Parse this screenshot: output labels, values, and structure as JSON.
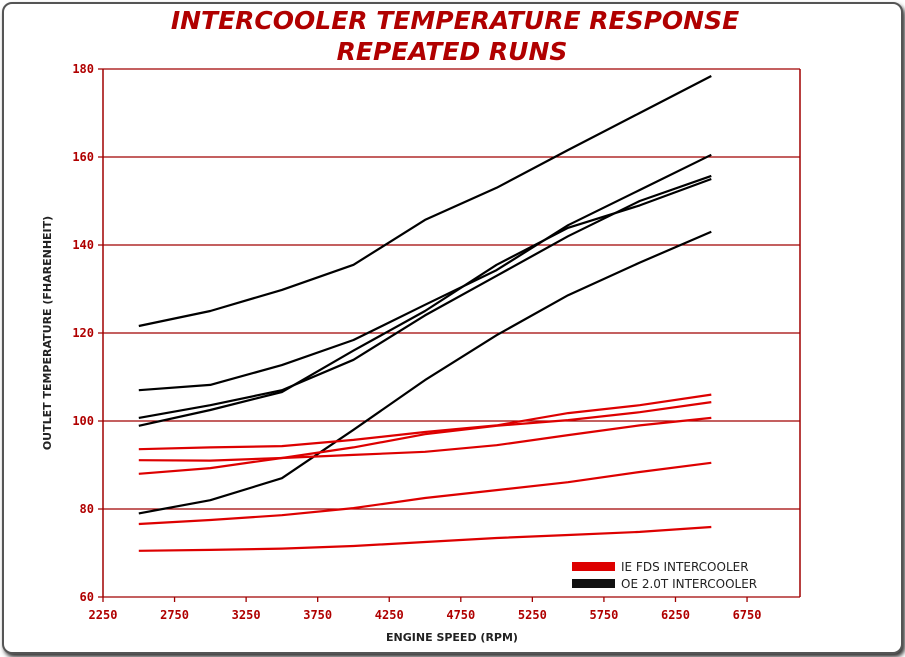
{
  "chart_data": {
    "type": "line",
    "title": [
      "INTERCOOLER TEMPERATURE RESPONSE",
      "REPEATED RUNS"
    ],
    "xlabel": "ENGINE SPEED (RPM)",
    "ylabel": "OUTLET TEMPERATURE (FHARENHEIT)",
    "xlim": [
      2250,
      7120
    ],
    "ylim": [
      60,
      180
    ],
    "xticks": [
      2250,
      2750,
      3250,
      3750,
      4250,
      4750,
      5250,
      5750,
      6250,
      6750
    ],
    "yticks": [
      60,
      80,
      100,
      120,
      140,
      160,
      180
    ],
    "grid": "horizontal",
    "legend_position": "bottom-right",
    "legend": [
      {
        "name": "IE FDS INTERCOOLER",
        "color": "#dd0000"
      },
      {
        "name": "OE 2.0T INTERCOOLER",
        "color": "#000000"
      }
    ],
    "x": [
      2500,
      3000,
      3500,
      4000,
      4500,
      5000,
      5500,
      6000,
      6500
    ],
    "series": [
      {
        "group": "OE 2.0T INTERCOOLER",
        "color": "#000000",
        "values": [
          121.6,
          125,
          129.8,
          135.5,
          145.7,
          153,
          161.6,
          170,
          178.4
        ]
      },
      {
        "group": "OE 2.0T INTERCOOLER",
        "color": "#000000",
        "values": [
          107,
          108.2,
          112.7,
          118.4,
          126.4,
          134.3,
          144.5,
          152.5,
          160.5
        ]
      },
      {
        "group": "OE 2.0T INTERCOOLER",
        "color": "#000000",
        "values": [
          100.7,
          103.6,
          107,
          113.9,
          124,
          133,
          142,
          150,
          155.7
        ]
      },
      {
        "group": "OE 2.0T INTERCOOLER",
        "color": "#000000",
        "values": [
          98.9,
          102.5,
          106.6,
          116,
          125,
          135.5,
          143.9,
          149,
          155
        ]
      },
      {
        "group": "OE 2.0T INTERCOOLER",
        "color": "#000000",
        "values": [
          79,
          82,
          87,
          98,
          109.3,
          119.5,
          128.6,
          136,
          143
        ]
      },
      {
        "group": "IE FDS INTERCOOLER",
        "color": "#dd0000",
        "values": [
          93.6,
          94,
          94.3,
          95.7,
          97.5,
          99,
          101.8,
          103.6,
          106
        ]
      },
      {
        "group": "IE FDS INTERCOOLER",
        "color": "#dd0000",
        "values": [
          91.1,
          91,
          91.6,
          92.3,
          93,
          94.5,
          96.8,
          99,
          100.7
        ]
      },
      {
        "group": "IE FDS INTERCOOLER",
        "color": "#dd0000",
        "values": [
          88,
          89.3,
          91.6,
          94,
          97,
          98.9,
          100.2,
          102,
          104.3
        ]
      },
      {
        "group": "IE FDS INTERCOOLER",
        "color": "#dd0000",
        "values": [
          76.6,
          77.5,
          78.6,
          80.2,
          82.5,
          84.3,
          86.1,
          88.4,
          90.5
        ]
      },
      {
        "group": "IE FDS INTERCOOLER",
        "color": "#dd0000",
        "values": [
          70.5,
          70.7,
          71,
          71.6,
          72.5,
          73.4,
          74.1,
          74.8,
          75.9
        ]
      }
    ],
    "axis_color": "#a00000"
  }
}
